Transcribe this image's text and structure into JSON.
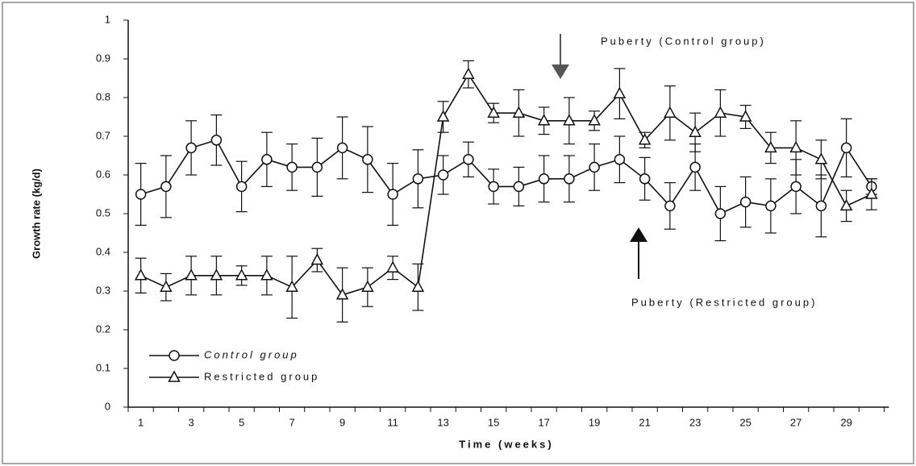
{
  "chart_data": {
    "type": "line",
    "x_label": "Time (weeks)",
    "y_label": "Growth rate (kg/d)",
    "categories": [
      1,
      null,
      3,
      null,
      5,
      null,
      7,
      null,
      9,
      null,
      11,
      null,
      13,
      null,
      15,
      null,
      17,
      null,
      19,
      null,
      21,
      null,
      23,
      null,
      25,
      null,
      27,
      null,
      29,
      null
    ],
    "ylim": [
      0,
      1
    ],
    "yticks": [
      0,
      0.1,
      0.2,
      0.3,
      0.4,
      0.5,
      0.6,
      0.7,
      0.8,
      0.9,
      1
    ],
    "legend": "lower left",
    "annotations": [
      "Puberty (Control group)",
      "Puberty (Restricted group)"
    ],
    "series": [
      {
        "name": "Control group",
        "marker": "circle",
        "color": "#111111",
        "values": [
          0.55,
          0.57,
          0.67,
          0.69,
          0.57,
          0.64,
          0.62,
          0.62,
          0.67,
          0.64,
          0.55,
          0.59,
          0.6,
          0.64,
          0.57,
          0.57,
          0.59,
          0.59,
          0.62,
          0.64,
          0.59,
          0.52,
          0.62,
          0.5,
          0.53,
          0.52,
          0.57,
          0.52,
          0.67,
          0.57
        ],
        "errors": [
          0.08,
          0.08,
          0.07,
          0.065,
          0.065,
          0.07,
          0.06,
          0.075,
          0.08,
          0.085,
          0.08,
          0.075,
          0.05,
          0.045,
          0.045,
          0.05,
          0.06,
          0.06,
          0.06,
          0.06,
          0.055,
          0.06,
          0.06,
          0.07,
          0.065,
          0.07,
          0.07,
          0.08,
          0.075,
          0.02
        ]
      },
      {
        "name": "Restricted group",
        "marker": "triangle",
        "color": "#111111",
        "values": [
          0.34,
          0.31,
          0.34,
          0.34,
          0.34,
          0.34,
          0.31,
          0.38,
          0.29,
          0.31,
          0.36,
          0.31,
          0.75,
          0.86,
          0.76,
          0.76,
          0.74,
          0.74,
          0.74,
          0.81,
          0.69,
          0.76,
          0.71,
          0.76,
          0.75,
          0.67,
          0.67,
          0.64,
          0.52,
          0.55
        ],
        "errors": [
          0.045,
          0.035,
          0.05,
          0.05,
          0.025,
          0.05,
          0.08,
          0.03,
          0.07,
          0.05,
          0.03,
          0.06,
          0.04,
          0.035,
          0.025,
          0.06,
          0.035,
          0.06,
          0.025,
          0.065,
          0.02,
          0.07,
          0.05,
          0.06,
          0.03,
          0.04,
          0.07,
          0.05,
          0.04,
          0.04
        ]
      }
    ]
  }
}
